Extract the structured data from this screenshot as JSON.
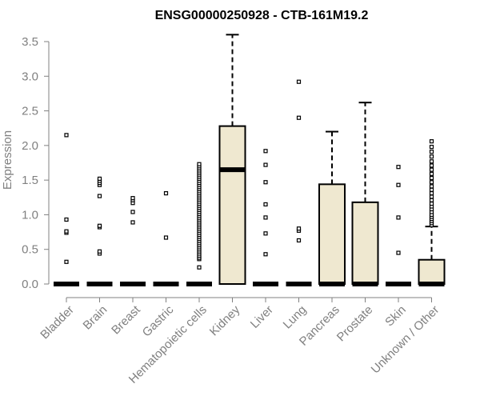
{
  "chart_data": {
    "type": "box",
    "title": "ENSG00000250928 - CTB-161M19.2",
    "ylabel": "Expression",
    "ylim": [
      0,
      3.5
    ],
    "yticks": [
      "0.0",
      "0.5",
      "1.0",
      "1.5",
      "2.0",
      "2.5",
      "3.0",
      "3.5"
    ],
    "grid": false,
    "box_fill": "#efe8d0",
    "categories": [
      "Bladder",
      "Brain",
      "Breast",
      "Gastric",
      "Hematopoietic cells",
      "Kidney",
      "Liver",
      "Lung",
      "Pancreas",
      "Prostate",
      "Skin",
      "Unknown / Other"
    ],
    "boxes": [
      {
        "q1": 0,
        "median": 0,
        "q3": 0,
        "whisker_low": 0,
        "whisker_high": 0,
        "outliers": [
          0.32,
          0.74,
          0.76,
          0.93,
          2.15
        ]
      },
      {
        "q1": 0,
        "median": 0,
        "q3": 0,
        "whisker_low": 0,
        "whisker_high": 0,
        "outliers": [
          0.44,
          0.47,
          0.82,
          0.84,
          1.27,
          1.43,
          1.46,
          1.49,
          1.52
        ]
      },
      {
        "q1": 0,
        "median": 0,
        "q3": 0,
        "whisker_low": 0,
        "whisker_high": 0,
        "outliers": [
          0.89,
          1.04,
          1.17,
          1.21,
          1.24
        ]
      },
      {
        "q1": 0,
        "median": 0,
        "q3": 0,
        "whisker_low": 0,
        "whisker_high": 0,
        "outliers": [
          0.67,
          1.31
        ]
      },
      {
        "q1": 0,
        "median": 0,
        "q3": 0,
        "whisker_low": 0,
        "whisker_high": 0,
        "outliers": [
          0.24,
          0.36,
          0.38,
          0.41,
          0.44,
          0.47,
          0.5,
          0.53,
          0.56,
          0.59,
          0.62,
          0.65,
          0.68,
          0.71,
          0.74,
          0.77,
          0.8,
          0.83,
          0.86,
          0.89,
          0.92,
          0.95,
          0.98,
          1.01,
          1.04,
          1.07,
          1.1,
          1.13,
          1.16,
          1.19,
          1.22,
          1.25,
          1.28,
          1.31,
          1.34,
          1.37,
          1.4,
          1.43,
          1.46,
          1.49,
          1.52,
          1.55,
          1.58,
          1.61,
          1.64,
          1.67,
          1.7,
          1.73
        ]
      },
      {
        "q1": 0,
        "median": 1.65,
        "q3": 2.28,
        "whisker_low": 0,
        "whisker_high": 3.6,
        "outliers": []
      },
      {
        "q1": 0,
        "median": 0,
        "q3": 0,
        "whisker_low": 0,
        "whisker_high": 0,
        "outliers": [
          0.43,
          0.73,
          0.96,
          1.15,
          1.47,
          1.72,
          1.92
        ]
      },
      {
        "q1": 0,
        "median": 0,
        "q3": 0,
        "whisker_low": 0,
        "whisker_high": 0,
        "outliers": [
          0.63,
          0.77,
          0.8,
          2.4,
          2.92
        ]
      },
      {
        "q1": 0,
        "median": 0,
        "q3": 1.44,
        "whisker_low": 0,
        "whisker_high": 2.2,
        "outliers": []
      },
      {
        "q1": 0,
        "median": 0,
        "q3": 1.18,
        "whisker_low": 0,
        "whisker_high": 2.62,
        "outliers": []
      },
      {
        "q1": 0,
        "median": 0,
        "q3": 0,
        "whisker_low": 0,
        "whisker_high": 0,
        "outliers": [
          0.45,
          0.96,
          1.43,
          1.69
        ]
      },
      {
        "q1": 0,
        "median": 0,
        "q3": 0.35,
        "whisker_low": 0,
        "whisker_high": 0.83,
        "outliers": [
          0.85,
          0.88,
          0.91,
          0.94,
          0.97,
          1.0,
          1.04,
          1.08,
          1.12,
          1.16,
          1.21,
          1.26,
          1.31,
          1.36,
          1.41,
          1.47,
          1.53,
          1.59,
          1.65,
          1.71,
          1.77,
          1.84,
          1.91,
          1.98,
          2.06
        ]
      }
    ]
  }
}
